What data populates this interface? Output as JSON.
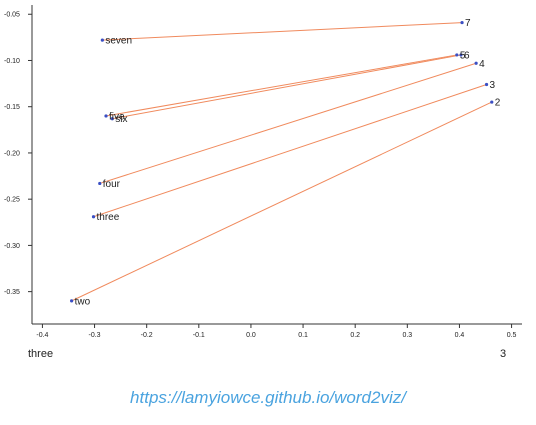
{
  "chart_data": {
    "type": "scatter",
    "xlim": [
      -0.42,
      0.52
    ],
    "ylim": [
      -0.385,
      -0.04
    ],
    "x_ticks": [
      "-0.4",
      "-0.3",
      "-0.2",
      "-0.1",
      "0.0",
      "0.1",
      "0.2",
      "0.3",
      "0.4",
      "0.5"
    ],
    "y_ticks": [
      "-0.05",
      "-0.10",
      "-0.15",
      "-0.20",
      "-0.25",
      "-0.30",
      "-0.35"
    ],
    "x_axis_left_label": "three",
    "x_axis_right_label": "3",
    "grid": false,
    "words": [
      {
        "label": "seven",
        "x": -0.285,
        "y": -0.078
      },
      {
        "label": "five",
        "x": -0.278,
        "y": -0.16
      },
      {
        "label": "six",
        "x": -0.266,
        "y": -0.163
      },
      {
        "label": "four",
        "x": -0.29,
        "y": -0.233
      },
      {
        "label": "three",
        "x": -0.302,
        "y": -0.269
      },
      {
        "label": "two",
        "x": -0.344,
        "y": -0.36
      }
    ],
    "numbers": [
      {
        "label": "7",
        "x": 0.405,
        "y": -0.059
      },
      {
        "label": "5",
        "x": 0.395,
        "y": -0.094
      },
      {
        "label": "6",
        "x": 0.403,
        "y": -0.094
      },
      {
        "label": "4",
        "x": 0.432,
        "y": -0.103
      },
      {
        "label": "3",
        "x": 0.452,
        "y": -0.126
      },
      {
        "label": "2",
        "x": 0.462,
        "y": -0.145
      }
    ],
    "connections": [
      [
        "seven",
        "7"
      ],
      [
        "five",
        "5"
      ],
      [
        "six",
        "6"
      ],
      [
        "four",
        "4"
      ],
      [
        "three",
        "3"
      ],
      [
        "two",
        "2"
      ]
    ],
    "colors": {
      "point": "#3a4fc4",
      "line": "#f08a5d",
      "axis": "#333333"
    }
  },
  "caption": "https://lamyiowce.github.io/word2viz/"
}
